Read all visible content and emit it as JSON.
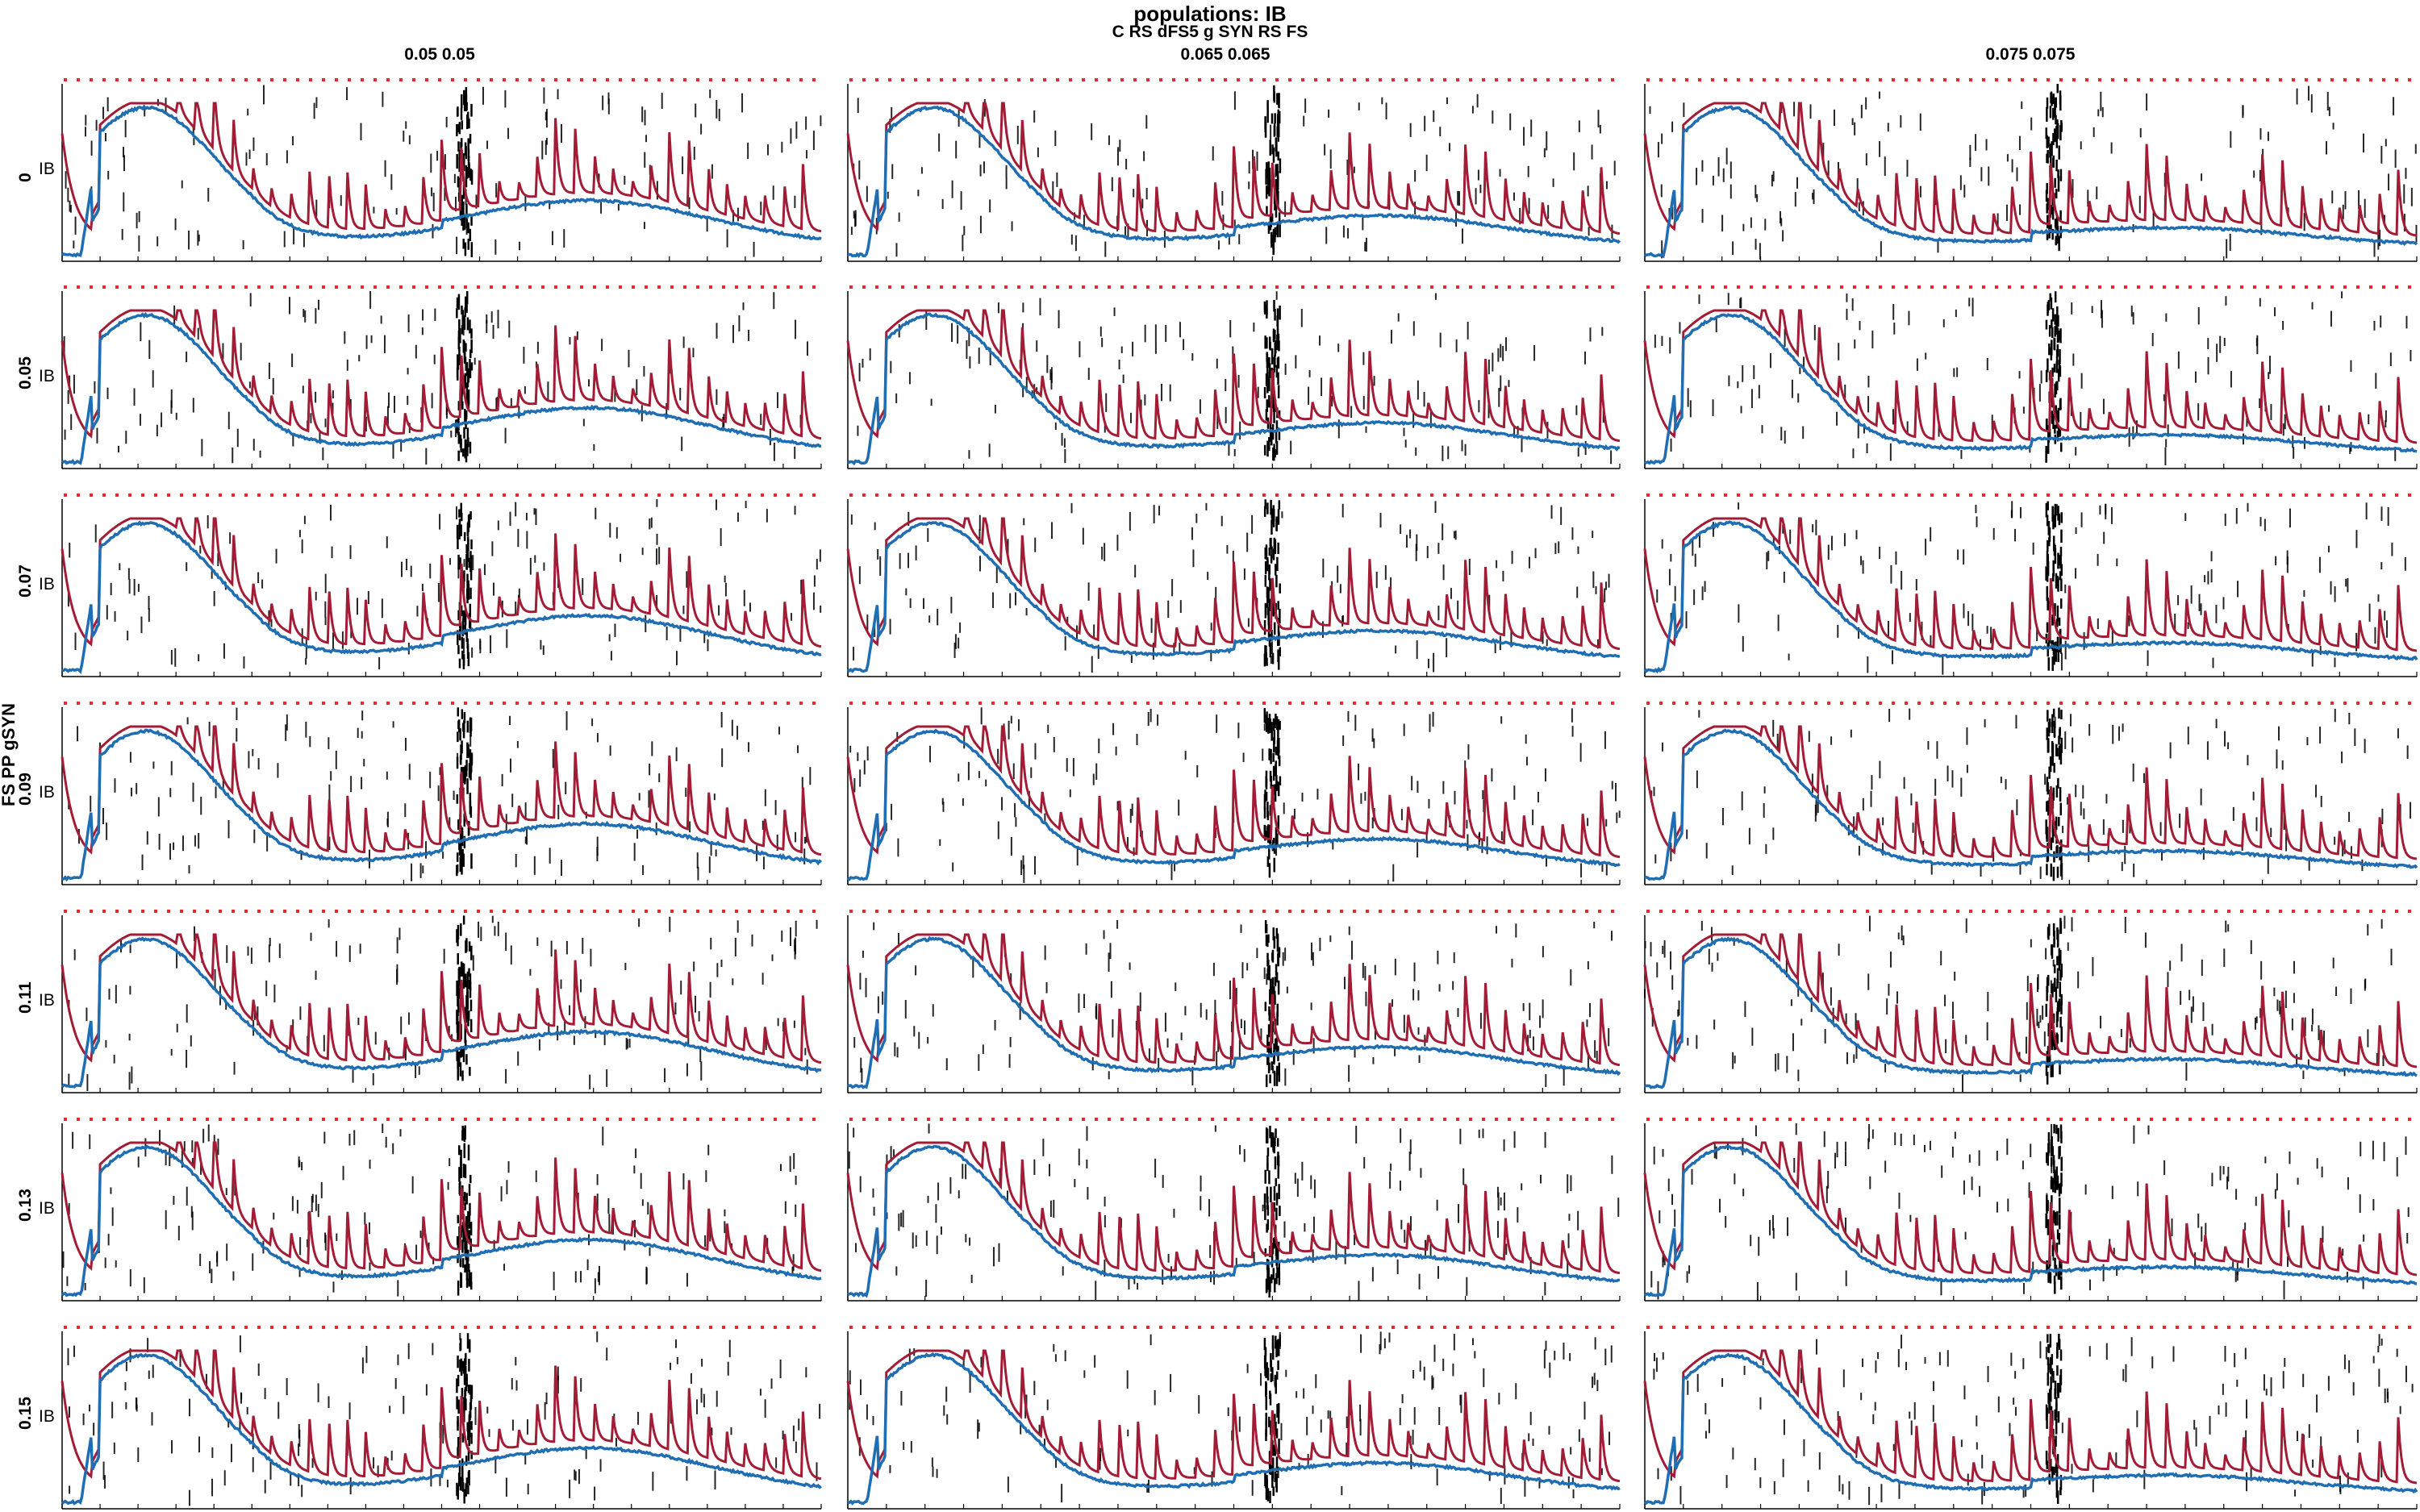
{
  "chart_data": {
    "type": "line",
    "title": "populations: IB",
    "subtitle": "C RS dFS5 g SYN RS FS",
    "column_axis": {
      "name": "C RS dFS5 g SYN RS FS",
      "labels": [
        "0.05 0.05",
        "0.065 0.065",
        "0.075 0.075"
      ]
    },
    "row_axis": {
      "name": "FS PP gSYN",
      "labels": [
        "0",
        "0.05",
        "0.07",
        "0.09",
        "0.11",
        "0.13",
        "0.15"
      ]
    },
    "panel_population_label": "IB",
    "series": [
      {
        "color": "#a31c36"
      },
      {
        "color": "#1f6db3"
      },
      {
        "color": "#000000"
      },
      {
        "color": "#e8282f"
      }
    ],
    "grid": false,
    "legend": "none"
  }
}
